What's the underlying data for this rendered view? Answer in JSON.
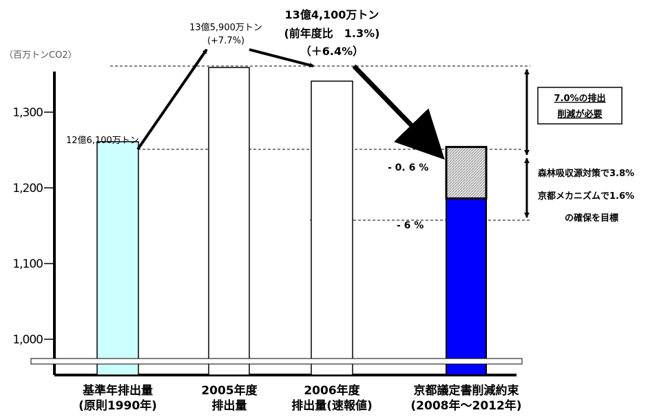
{
  "chart_data": {
    "type": "bar",
    "unit_label": "（百万トンCO2）",
    "categories": [
      [
        "基準年排出量",
        "(原則1990年)"
      ],
      [
        "2005年度",
        "排出量"
      ],
      [
        "2006年度",
        "排出量(速報値)"
      ],
      [
        "京都議定書削減約束",
        "(2008年～2012年)"
      ]
    ],
    "values": [
      1261,
      1359,
      1341,
      1186
    ],
    "kyoto_stack": {
      "base_top": 1186,
      "absorption_top": 1254
    },
    "y_ticks": [
      {
        "value": 1000,
        "label": "1,000"
      },
      {
        "value": 1100,
        "label": "1,100"
      },
      {
        "value": 1200,
        "label": "1,200"
      },
      {
        "value": 1300,
        "label": "1,300"
      }
    ],
    "ylim": [
      970,
      1400
    ],
    "colors": {
      "base_year": "#ccffff",
      "fy2005": "#ffffff",
      "fy2006": "#ffffff",
      "kyoto_base": "#0000ff",
      "kyoto_hatch": "#c8c8c8"
    },
    "annotations": {
      "base_year": "12億6,100万トン",
      "fy2005_line1": "13億5,900万トン",
      "fy2005_line2": "(+7.7%)",
      "fy2006_line1": "13億4,100万トン",
      "fy2006_line2": "(前年度比　1.3%)",
      "fy2006_line3": "（＋6.4%）",
      "kyoto_hatch_pct": "- 0. 6 %",
      "kyoto_base_pct": "- 6 %",
      "required_line1": "7.0%の排出",
      "required_line2": "削減が必要",
      "sink_line1": "森林吸収源対策で3.8%",
      "sink_line2": "京都メカニズムで1.6%",
      "sink_line3": "の確保を目標"
    }
  }
}
